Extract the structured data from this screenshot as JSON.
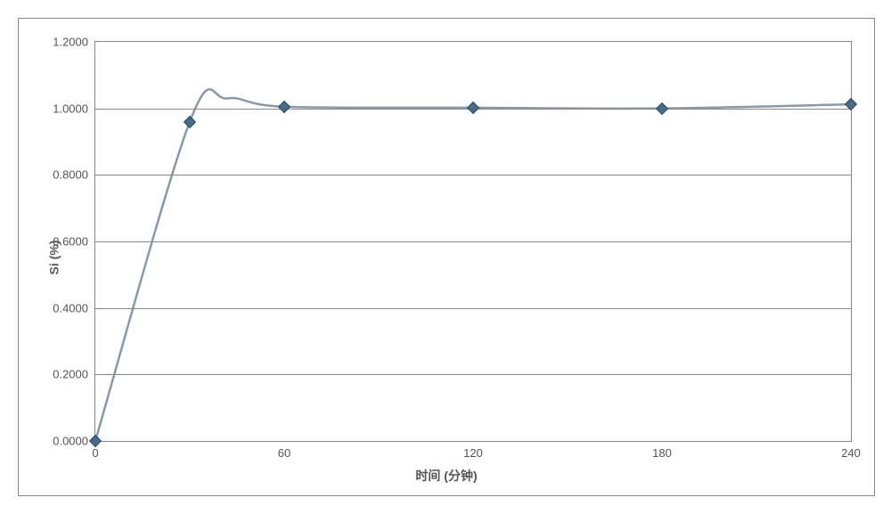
{
  "chart": {
    "type": "line",
    "y_axis_title": "Si (%)",
    "x_axis_title": "时间 (分钟)",
    "x_values": [
      0,
      30,
      60,
      120,
      180,
      240
    ],
    "y_values": [
      0.0,
      0.96,
      1.005,
      1.002,
      1.0,
      1.012
    ],
    "xlim": [
      0,
      240
    ],
    "ylim": [
      0.0,
      1.2
    ],
    "x_ticks": [
      0,
      60,
      120,
      180,
      240
    ],
    "y_ticks": [
      0.0,
      0.2,
      0.4,
      0.6,
      0.8,
      1.0,
      1.2
    ],
    "y_tick_labels": [
      "0.0000",
      "0.2000",
      "0.4000",
      "0.6000",
      "0.8000",
      "1.0000",
      "1.2000"
    ],
    "x_tick_labels": [
      "0",
      "60",
      "120",
      "180",
      "240"
    ],
    "line_color": "#8899aa",
    "line_width": 2.5,
    "marker_style": "diamond",
    "marker_size": 8,
    "marker_fill": "#4a6a8a",
    "marker_border": "#2a4a6a",
    "grid_color": "#888888",
    "border_color": "#888888",
    "background_color": "#ffffff",
    "tick_label_fontsize": 13,
    "tick_label_color": "#555555",
    "axis_title_fontsize": 14,
    "axis_title_fontweight": "bold",
    "axis_title_color": "#555555",
    "overshoot_peak_x": 42,
    "overshoot_peak_y": 1.03
  }
}
